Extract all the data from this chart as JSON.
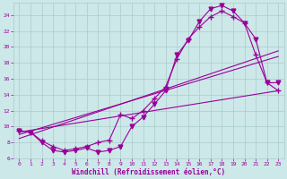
{
  "xlabel": "Windchill (Refroidissement éolien,°C)",
  "background_color": "#cde8e8",
  "grid_color": "#aacccc",
  "line_color": "#990099",
  "xlim": [
    -0.5,
    23.5
  ],
  "ylim": [
    6,
    25.5
  ],
  "xticks": [
    0,
    1,
    2,
    3,
    4,
    5,
    6,
    7,
    8,
    9,
    10,
    11,
    12,
    13,
    14,
    15,
    16,
    17,
    18,
    19,
    20,
    21,
    22,
    23
  ],
  "yticks": [
    6,
    8,
    10,
    12,
    14,
    16,
    18,
    20,
    22,
    24
  ],
  "curve1_x": [
    0,
    1,
    2,
    3,
    4,
    5,
    6,
    7,
    8,
    9,
    10,
    11,
    12,
    13,
    14,
    15,
    16,
    17,
    18,
    19,
    20,
    21,
    22,
    23
  ],
  "curve1_y": [
    9.5,
    9.3,
    8.2,
    7.5,
    7.0,
    7.2,
    7.5,
    8.0,
    8.3,
    11.5,
    11.0,
    12.0,
    13.5,
    15.0,
    18.5,
    21.0,
    22.5,
    23.8,
    24.5,
    23.8,
    23.0,
    19.0,
    15.5,
    14.5
  ],
  "curve2_x": [
    0,
    1,
    2,
    3,
    4,
    5,
    6,
    7,
    8,
    9,
    10,
    11,
    12,
    13,
    14,
    15,
    16,
    17,
    18,
    19,
    20,
    21,
    22,
    23
  ],
  "curve2_y": [
    9.5,
    9.3,
    8.0,
    7.0,
    6.8,
    7.0,
    7.3,
    6.8,
    7.0,
    7.5,
    10.0,
    11.2,
    12.8,
    14.5,
    19.0,
    20.8,
    23.2,
    24.8,
    25.2,
    24.5,
    23.0,
    21.0,
    15.5,
    15.5
  ],
  "line1_x": [
    0,
    23
  ],
  "line1_y": [
    9.3,
    14.5
  ],
  "line2_x": [
    0,
    23
  ],
  "line2_y": [
    9.0,
    18.8
  ],
  "line3_x": [
    0,
    23
  ],
  "line3_y": [
    8.5,
    19.5
  ]
}
